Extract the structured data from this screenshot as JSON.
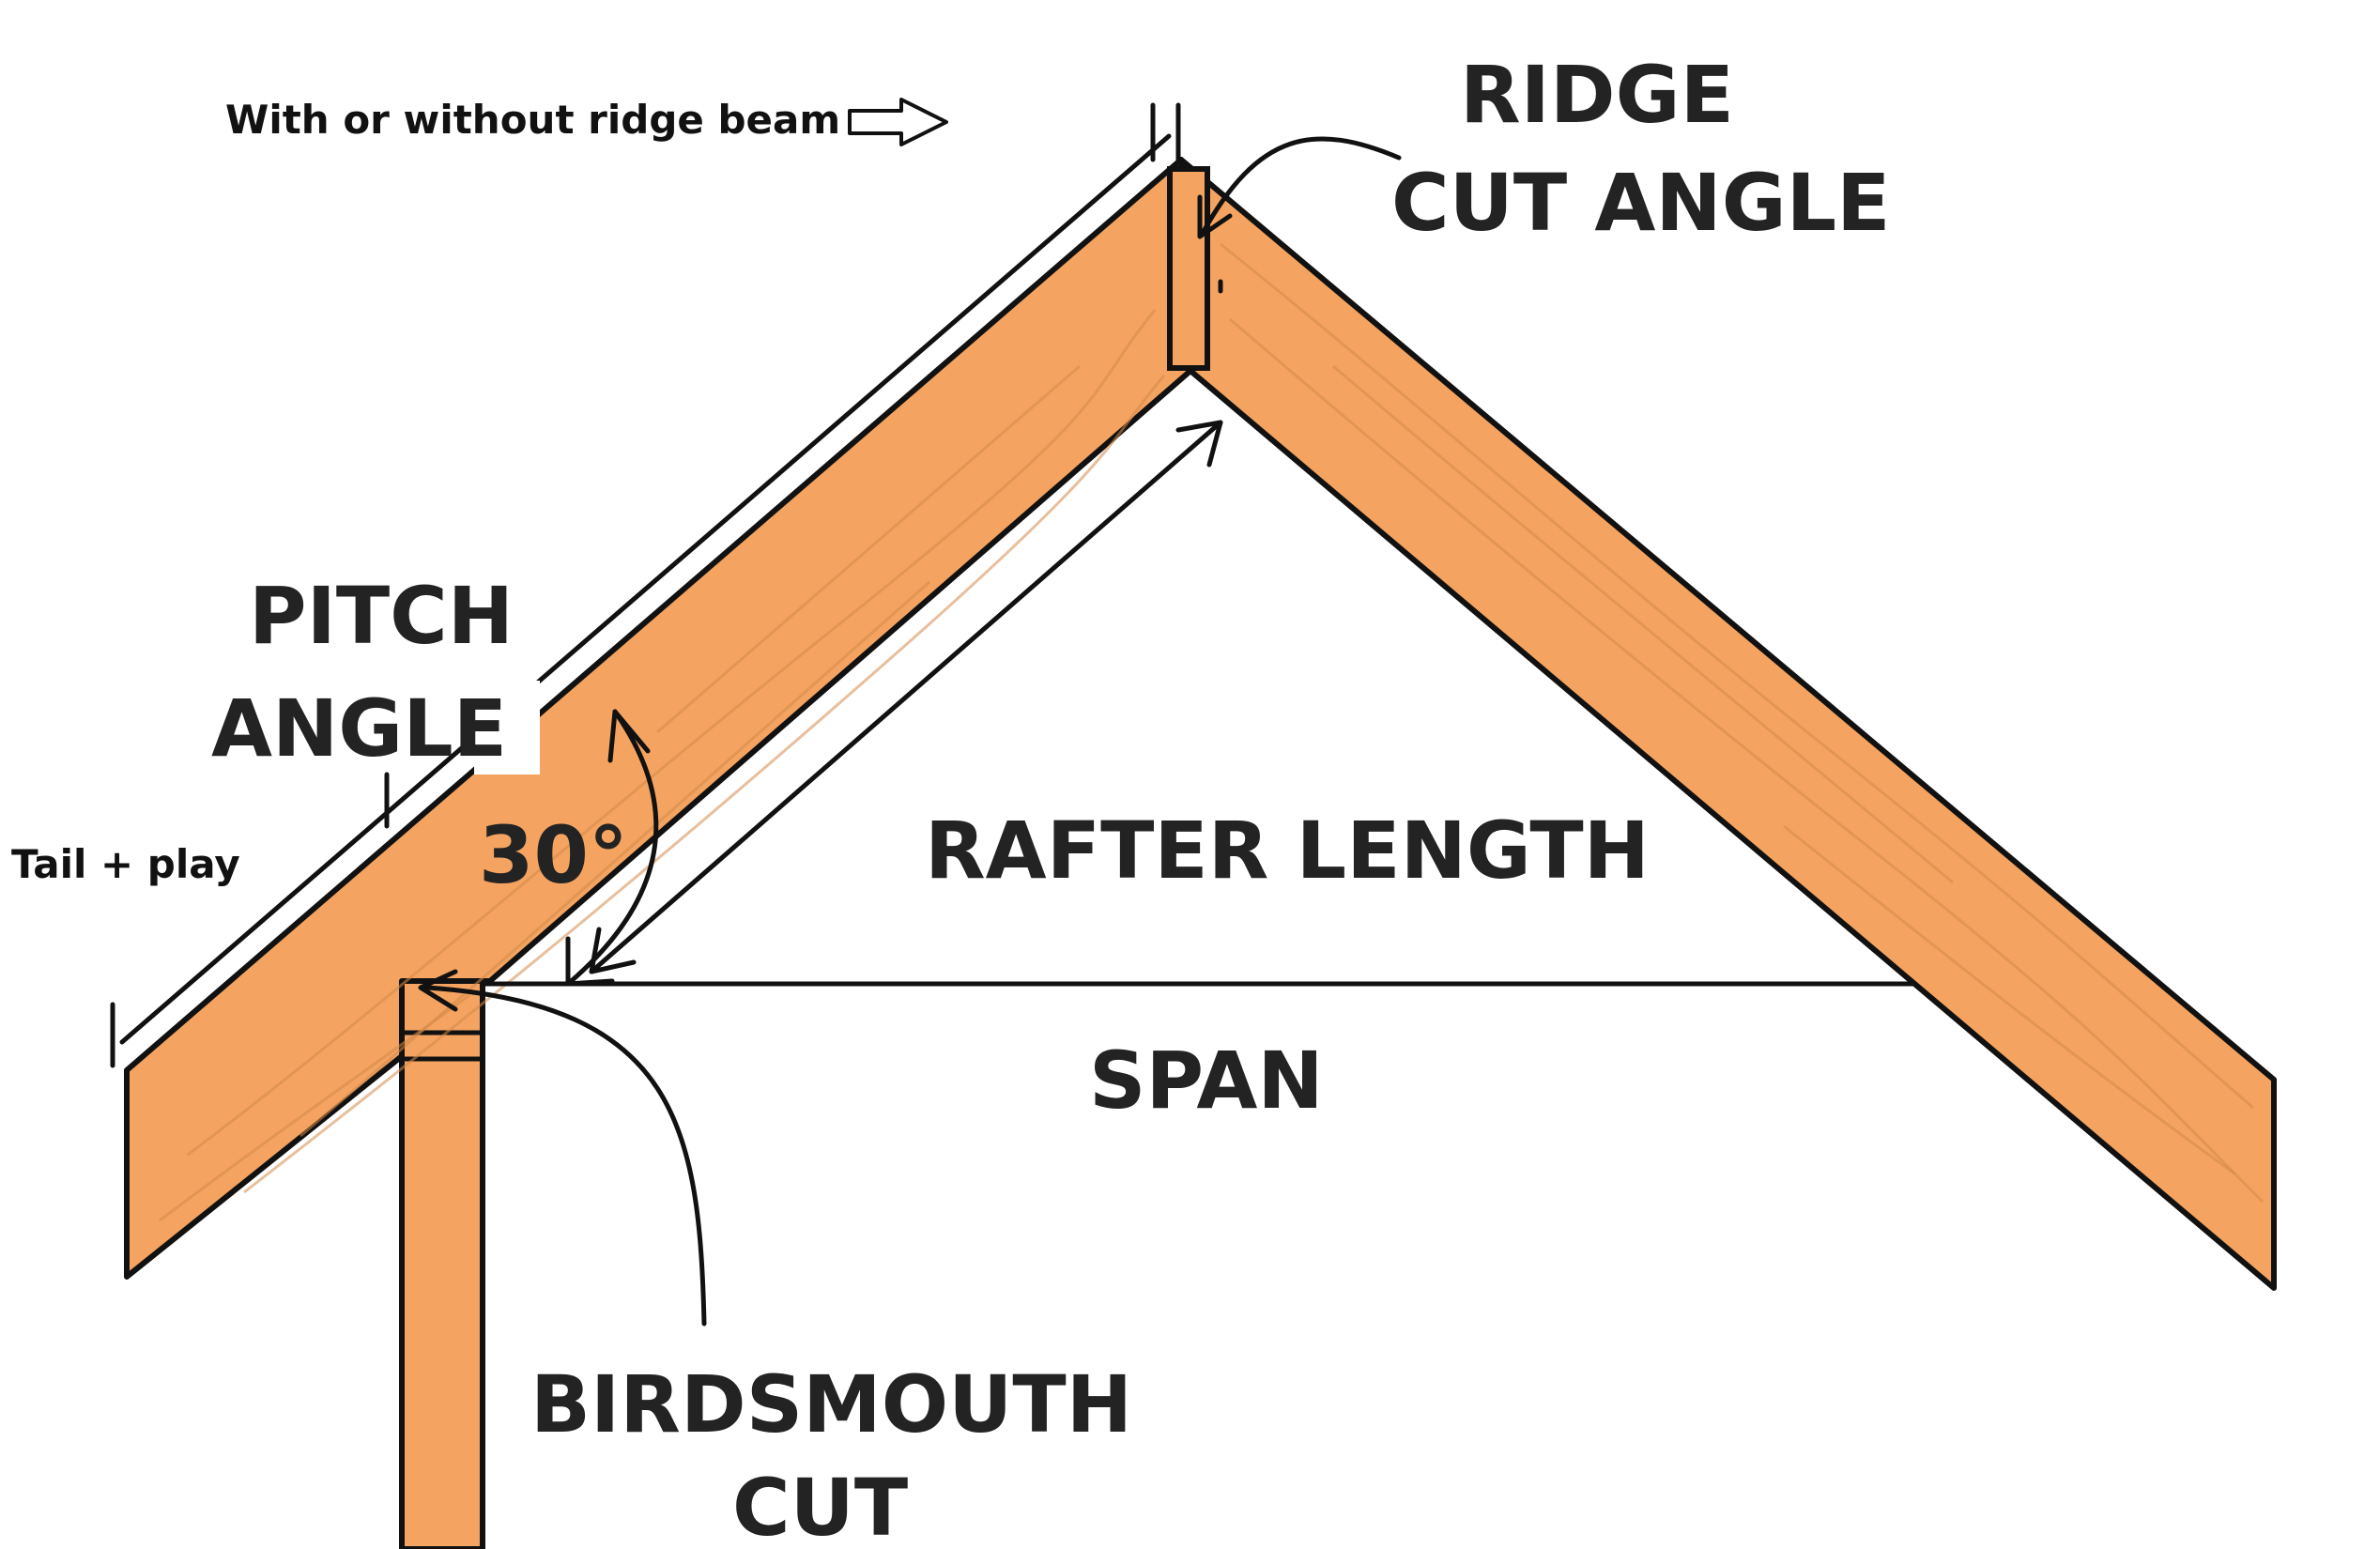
{
  "labels": {
    "ridge_beam_note": "With or without ridge beam",
    "ridge_cut_line1": "RIDGE",
    "ridge_cut_line2": "CUT ANGLE",
    "pitch_line1": "PITCH",
    "pitch_line2": "ANGLE",
    "angle_value": "30°",
    "tail_note": "Tail + play",
    "rafter_length": "RAFTER LENGTH",
    "span": "SPAN",
    "birdsmouth_line1": "BIRDSMOUTH",
    "birdsmouth_line2": "CUT"
  },
  "colors": {
    "wood": "#f4a460",
    "outline": "#111111",
    "text": "#232323",
    "background": "#ffffff"
  }
}
